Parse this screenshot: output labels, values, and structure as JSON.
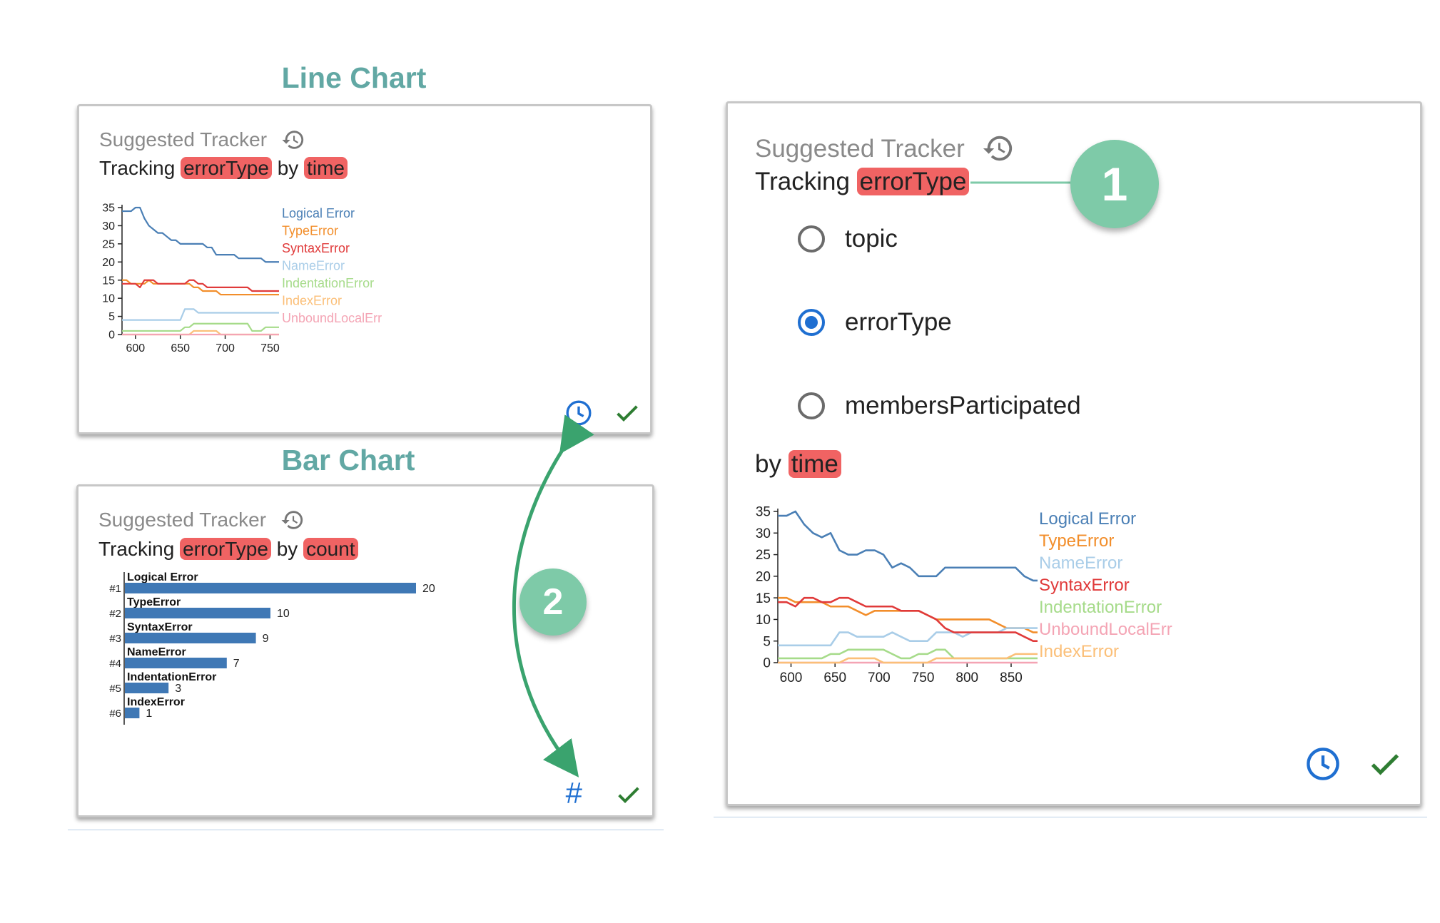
{
  "headings": {
    "line": "Line Chart",
    "bar": "Bar Chart"
  },
  "line_card": {
    "title": "Suggested Tracker",
    "tracking": "Tracking",
    "field": "errorType",
    "by": "by",
    "axis": "time"
  },
  "bar_card": {
    "title": "Suggested Tracker",
    "tracking": "Tracking",
    "field": "errorType",
    "by": "by",
    "axis": "count"
  },
  "main_card": {
    "title": "Suggested Tracker",
    "tracking": "Tracking",
    "field": "errorType",
    "options": [
      "topic",
      "errorType",
      "membersParticipated"
    ],
    "selected": "errorType",
    "by": "by",
    "axis": "time"
  },
  "badges": {
    "one": "1",
    "two": "2"
  },
  "icons": {
    "history": "history-icon",
    "clock": "clock-icon",
    "check": "check-icon",
    "hash": "hash-icon",
    "hash_glyph": "#"
  },
  "colors": {
    "accent_green": "#7ecaa8",
    "heading": "#62a8a4",
    "pill": "#f06363",
    "blue": "#1f6fd1",
    "check": "#2e7d32"
  },
  "chart_data": [
    {
      "id": "small-line",
      "type": "line",
      "x": [
        585,
        590,
        595,
        600,
        605,
        610,
        615,
        620,
        625,
        630,
        635,
        640,
        645,
        650,
        655,
        660,
        665,
        670,
        675,
        680,
        685,
        690,
        695,
        700,
        705,
        710,
        715,
        720,
        725,
        730,
        735,
        740,
        745,
        750,
        755,
        760
      ],
      "xlim": [
        585,
        760
      ],
      "ylim": [
        0,
        35
      ],
      "xticks": [
        600,
        650,
        700,
        750
      ],
      "yticks": [
        0,
        5,
        10,
        15,
        20,
        25,
        30,
        35
      ],
      "series": [
        {
          "name": "Logical Error",
          "color": "#4a7fb5",
          "values": [
            34,
            34,
            34,
            35,
            35,
            32,
            30,
            29,
            28,
            28,
            27,
            26,
            26,
            25,
            25,
            25,
            25,
            25,
            25,
            24,
            24,
            22,
            22,
            22,
            22,
            22,
            21,
            21,
            21,
            21,
            21,
            21,
            20,
            20,
            20,
            20
          ]
        },
        {
          "name": "TypeError",
          "color": "#f28e2b",
          "values": [
            15,
            15,
            14,
            14,
            14,
            14,
            15,
            14,
            14,
            14,
            14,
            14,
            14,
            14,
            14,
            14,
            13,
            13,
            12,
            12,
            12,
            12,
            11,
            11,
            11,
            11,
            11,
            11,
            11,
            11,
            11,
            11,
            11,
            11,
            11,
            11
          ]
        },
        {
          "name": "SyntaxError",
          "color": "#e03a3a",
          "values": [
            14,
            14,
            14,
            14,
            13,
            15,
            15,
            15,
            14,
            14,
            14,
            14,
            14,
            14,
            14,
            15,
            15,
            14,
            14,
            13,
            13,
            13,
            13,
            13,
            13,
            13,
            13,
            13,
            13,
            12,
            12,
            12,
            12,
            12,
            12,
            12
          ]
        },
        {
          "name": "NameError",
          "color": "#a9cde8",
          "values": [
            4,
            4,
            4,
            4,
            4,
            4,
            4,
            4,
            4,
            4,
            4,
            4,
            4,
            4,
            7,
            7,
            7,
            6,
            6,
            6,
            6,
            6,
            6,
            6,
            6,
            6,
            6,
            6,
            6,
            6,
            6,
            6,
            6,
            6,
            6,
            6
          ]
        },
        {
          "name": "IndentationError",
          "color": "#a6db8a",
          "values": [
            1,
            1,
            1,
            1,
            1,
            1,
            1,
            1,
            1,
            1,
            1,
            1,
            1,
            1,
            2,
            2,
            3,
            3,
            3,
            3,
            3,
            3,
            3,
            3,
            3,
            3,
            3,
            3,
            3,
            1,
            1,
            1,
            2,
            2,
            2,
            2
          ]
        },
        {
          "name": "IndexError",
          "color": "#fbbf78",
          "values": [
            0,
            0,
            0,
            0,
            0,
            0,
            0,
            0,
            0,
            0,
            0,
            0,
            0,
            0,
            0,
            0,
            1,
            1,
            1,
            1,
            1,
            1,
            0,
            0,
            0,
            0,
            0,
            0,
            0,
            0,
            0,
            0,
            0,
            0,
            0,
            0
          ]
        },
        {
          "name": "UnboundLocalErr",
          "color": "#f4a4b4",
          "values": [
            0,
            0,
            0,
            0,
            0,
            0,
            0,
            0,
            0,
            0,
            0,
            0,
            0,
            0,
            0,
            0,
            0,
            0,
            0,
            0,
            0,
            0,
            0,
            0,
            0,
            0,
            0,
            0,
            0,
            0,
            0,
            0,
            0,
            0,
            0,
            0
          ]
        }
      ]
    },
    {
      "id": "bar",
      "type": "bar",
      "categories": [
        "Logical Error",
        "TypeError",
        "SyntaxError",
        "NameError",
        "IndentationError",
        "IndexError"
      ],
      "ranks": [
        "#1",
        "#2",
        "#3",
        "#4",
        "#5",
        "#6"
      ],
      "values": [
        20,
        10,
        9,
        7,
        3,
        1
      ],
      "color": "#3f78b5"
    },
    {
      "id": "large-line",
      "type": "line",
      "x": [
        585,
        595,
        605,
        615,
        625,
        635,
        645,
        655,
        665,
        675,
        685,
        695,
        705,
        715,
        725,
        735,
        745,
        755,
        765,
        775,
        785,
        795,
        805,
        815,
        825,
        835,
        845,
        855,
        865,
        875,
        880
      ],
      "xlim": [
        585,
        880
      ],
      "ylim": [
        0,
        35
      ],
      "xticks": [
        600,
        650,
        700,
        750,
        800,
        850
      ],
      "yticks": [
        0,
        5,
        10,
        15,
        20,
        25,
        30,
        35
      ],
      "series": [
        {
          "name": "Logical Error",
          "color": "#4a7fb5",
          "values": [
            34,
            34,
            35,
            32,
            30,
            29,
            30,
            26,
            25,
            25,
            26,
            26,
            25,
            22,
            23,
            22,
            20,
            20,
            20,
            22,
            22,
            22,
            22,
            22,
            22,
            22,
            22,
            22,
            20,
            19,
            19
          ]
        },
        {
          "name": "TypeError",
          "color": "#f28e2b",
          "values": [
            15,
            15,
            14,
            14,
            14,
            14,
            13,
            13,
            13,
            12,
            11,
            12,
            12,
            12,
            12,
            12,
            12,
            11,
            10,
            10,
            10,
            10,
            10,
            10,
            10,
            9,
            8,
            8,
            8,
            7,
            7
          ]
        },
        {
          "name": "NameError",
          "color": "#a9cde8",
          "values": [
            4,
            4,
            4,
            4,
            4,
            4,
            4,
            7,
            7,
            6,
            6,
            6,
            6,
            7,
            6,
            5,
            5,
            5,
            7,
            7,
            7,
            6,
            7,
            7,
            7,
            7,
            8,
            8,
            8,
            8,
            8
          ]
        },
        {
          "name": "SyntaxError",
          "color": "#e03a3a",
          "values": [
            14,
            14,
            13,
            15,
            15,
            14,
            14,
            15,
            15,
            14,
            13,
            13,
            13,
            13,
            12,
            12,
            12,
            11,
            10,
            8,
            7,
            7,
            7,
            7,
            7,
            7,
            7,
            7,
            6,
            5,
            5
          ]
        },
        {
          "name": "IndentationError",
          "color": "#a6db8a",
          "values": [
            1,
            1,
            1,
            1,
            1,
            1,
            2,
            2,
            3,
            3,
            3,
            3,
            3,
            2,
            1,
            1,
            2,
            2,
            3,
            3,
            1,
            1,
            1,
            1,
            1,
            1,
            1,
            1,
            1,
            1,
            1
          ]
        },
        {
          "name": "UnboundLocalErr",
          "color": "#f4a4b4",
          "values": [
            0,
            0,
            0,
            0,
            0,
            0,
            0,
            0,
            0,
            0,
            0,
            0,
            0,
            0,
            0,
            0,
            0,
            0,
            0,
            0,
            0,
            0,
            0,
            0,
            0,
            0,
            0,
            0,
            0,
            0,
            0
          ]
        },
        {
          "name": "IndexError",
          "color": "#fbbf78",
          "values": [
            0,
            0,
            0,
            0,
            0,
            0,
            0,
            0,
            1,
            1,
            1,
            1,
            0,
            0,
            0,
            0,
            0,
            0,
            1,
            1,
            1,
            1,
            1,
            1,
            1,
            1,
            1,
            2,
            2,
            2,
            2
          ]
        }
      ]
    }
  ]
}
